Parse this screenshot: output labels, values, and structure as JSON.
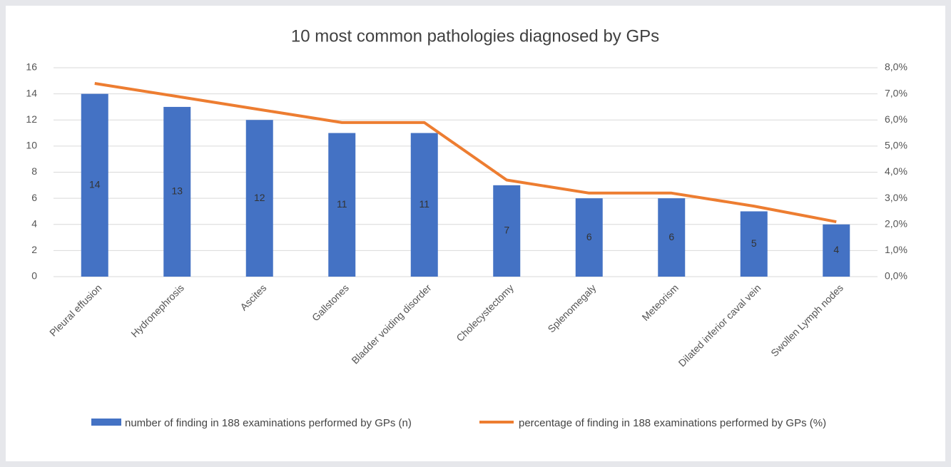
{
  "chart_data": {
    "type": "bar",
    "title": "10 most common pathologies diagnosed by GPs",
    "categories": [
      "Pleural effusion",
      "Hydronephrosis",
      "Ascites",
      "Gallstones",
      "Bladder voiding disorder",
      "Cholecystectomy",
      "Splenomegaly",
      "Meteorism",
      "Dilated inferior caval vein",
      "Swollen Lymph nodes"
    ],
    "series": [
      {
        "name": "number of finding in 188  examinations performed by GPs (n)",
        "type": "bar",
        "color": "#4472c4",
        "values": [
          14,
          13,
          12,
          11,
          11,
          7,
          6,
          6,
          5,
          4
        ]
      },
      {
        "name": "percentage  of finding in 188 examinations performed by GPs (%)",
        "type": "line",
        "axis": "y2",
        "color": "#ed7d31",
        "values": [
          7.4,
          6.9,
          6.4,
          5.9,
          5.9,
          3.7,
          3.2,
          3.2,
          2.7,
          2.1
        ]
      }
    ],
    "ylim": [
      0,
      16
    ],
    "yticks": [
      0,
      2,
      4,
      6,
      8,
      10,
      12,
      14,
      16
    ],
    "y2lim": [
      0,
      8
    ],
    "y2ticks": [
      {
        "value": 0,
        "label": "0,0%"
      },
      {
        "value": 1,
        "label": "1,0%"
      },
      {
        "value": 2,
        "label": "2,0%"
      },
      {
        "value": 3,
        "label": "3,0%"
      },
      {
        "value": 4,
        "label": "4,0%"
      },
      {
        "value": 5,
        "label": "5,0%"
      },
      {
        "value": 6,
        "label": "6,0%"
      },
      {
        "value": 7,
        "label": "7,0%"
      },
      {
        "value": 8,
        "label": "8,0%"
      }
    ],
    "grid": true,
    "legend": "bottom"
  }
}
